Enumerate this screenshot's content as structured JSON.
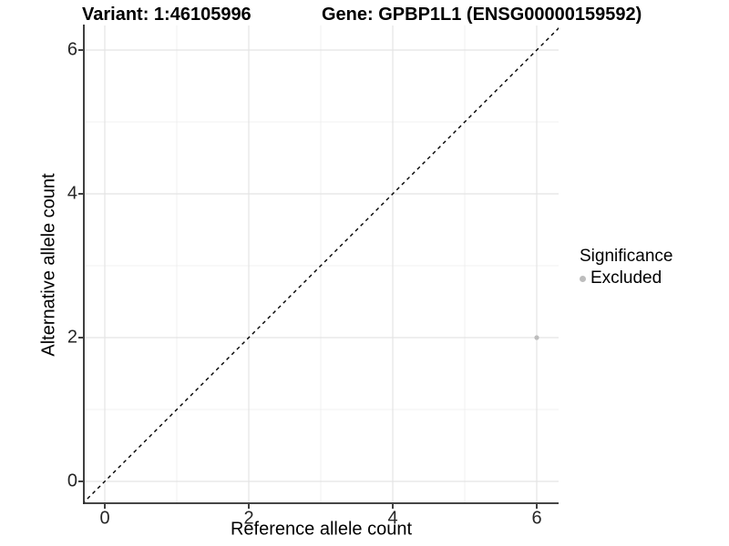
{
  "header": {
    "variant_title": "Variant: 1:46105996",
    "gene_title": "Gene: GPBP1L1 (ENSG00000159592)"
  },
  "chart_data": {
    "type": "scatter",
    "title": "Variant: 1:46105996   Gene: GPBP1L1 (ENSG00000159592)",
    "xlabel": "Reference allele count",
    "ylabel": "Alternative allele count",
    "xlim": [
      -0.3,
      6.3
    ],
    "ylim": [
      -0.3,
      6.3
    ],
    "x_ticks": [
      0,
      2,
      4,
      6
    ],
    "y_ticks": [
      0,
      2,
      4,
      6
    ],
    "x_minor_ticks": [
      1,
      3,
      5
    ],
    "y_minor_ticks": [
      1,
      3,
      5
    ],
    "grid": true,
    "identity_line": {
      "style": "dashed",
      "color": "#000000",
      "slope": 1,
      "intercept": 0
    },
    "series": [
      {
        "name": "Excluded",
        "color": "#bdbdbd",
        "points": [
          {
            "x": 6,
            "y": 2
          }
        ]
      }
    ],
    "legend": {
      "title": "Significance",
      "position": "right",
      "entries": [
        {
          "label": "Excluded",
          "color": "#bdbdbd"
        }
      ]
    }
  },
  "colors": {
    "background": "#ffffff",
    "axis_line": "#2b2b2b",
    "major_grid": "#e4e4e4",
    "minor_grid": "#f0f0f0",
    "point": "#bdbdbd",
    "dashed_line": "#000000",
    "tick_text": "#262626"
  }
}
